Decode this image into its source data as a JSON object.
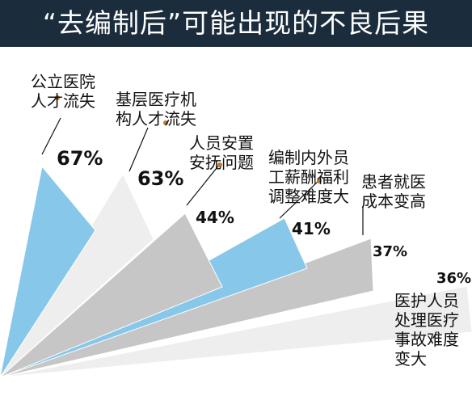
{
  "chart_data": {
    "type": "bar",
    "title": "“去编制后”可能出现的不良后果",
    "categories": [
      "公立医院人才流失",
      "基层医疗机构人才流失",
      "人员安置安抚问题",
      "编制内外员工薪酬福利调整难度大",
      "患者就医成本变高",
      "医护人员处理医疗事故难度变大"
    ],
    "values": [
      67,
      63,
      44,
      41,
      37,
      36
    ],
    "value_labels": [
      "67%",
      "63%",
      "44%",
      "41%",
      "37%",
      "36%"
    ],
    "label_lines": [
      [
        "公立医",
        "人才流失"
      ],
      [
        "基层医疗机",
        "构人才流失"
      ],
      [
        "人员安置",
        "安抚问题"
      ],
      [
        "编制内外员",
        "工薪酬福利",
        "调整难度大"
      ],
      [
        "患者就医",
        "成本变高"
      ],
      [
        "医护人员",
        "处理医疗",
        "事故难度",
        "变大"
      ]
    ],
    "colors": {
      "header": "#1b2c3c",
      "blue": "#87c7ea",
      "light": "#eeeeee",
      "gray": "#c6c6c6",
      "text": "#111111"
    }
  }
}
